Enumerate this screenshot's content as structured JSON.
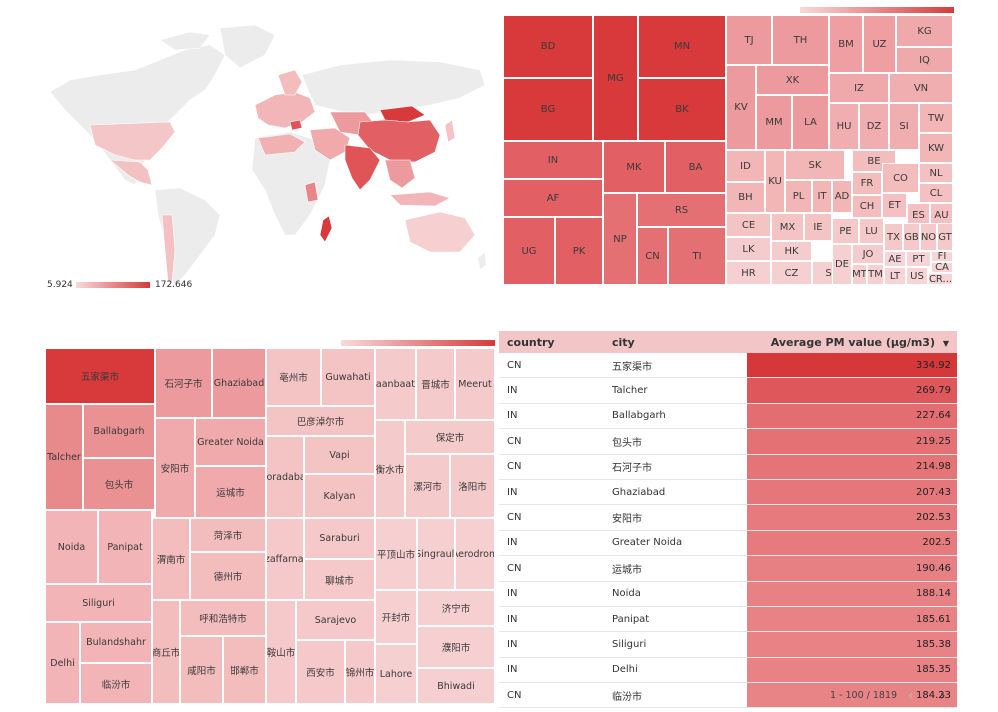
{
  "map": {
    "legend_min": "5.924",
    "legend_max": "172.646"
  },
  "treemap_countries": {
    "cells": [
      {
        "label": "BD",
        "color": "#d8393a"
      },
      {
        "label": "BG",
        "color": "#d8393a"
      },
      {
        "label": "MG",
        "color": "#d8393a"
      },
      {
        "label": "MN",
        "color": "#d8393a"
      },
      {
        "label": "BK",
        "color": "#d8393a"
      },
      {
        "label": "IN",
        "color": "#e26064"
      },
      {
        "label": "AF",
        "color": "#e26064"
      },
      {
        "label": "UG",
        "color": "#e26064"
      },
      {
        "label": "PK",
        "color": "#e26064"
      },
      {
        "label": "MK",
        "color": "#e26064"
      },
      {
        "label": "BA",
        "color": "#e26064"
      },
      {
        "label": "NP",
        "color": "#e57074"
      },
      {
        "label": "RS",
        "color": "#e57074"
      },
      {
        "label": "CN",
        "color": "#e57074"
      },
      {
        "label": "TI",
        "color": "#e57074"
      },
      {
        "label": "TJ",
        "color": "#ec9a9d"
      },
      {
        "label": "TH",
        "color": "#ec9a9d"
      },
      {
        "label": "KV",
        "color": "#ec9a9d"
      },
      {
        "label": "XK",
        "color": "#ec9a9d"
      },
      {
        "label": "MM",
        "color": "#ec9a9d"
      },
      {
        "label": "LA",
        "color": "#ec9a9d"
      },
      {
        "label": "BM",
        "color": "#ef9fa2"
      },
      {
        "label": "UZ",
        "color": "#ef9fa2"
      },
      {
        "label": "KG",
        "color": "#f0a9ab"
      },
      {
        "label": "IQ",
        "color": "#f0a9ab"
      },
      {
        "label": "IZ",
        "color": "#f0a9ab"
      },
      {
        "label": "VN",
        "color": "#f0aeb0"
      },
      {
        "label": "HU",
        "color": "#f0aeb0"
      },
      {
        "label": "DZ",
        "color": "#f0aeb0"
      },
      {
        "label": "SI",
        "color": "#f0aeb0"
      },
      {
        "label": "TW",
        "color": "#f2b6b7"
      },
      {
        "label": "KW",
        "color": "#f2b6b7"
      },
      {
        "label": "ID",
        "color": "#f2b6b7"
      },
      {
        "label": "KU",
        "color": "#f2b6b7"
      },
      {
        "label": "BH",
        "color": "#f2b6b7"
      },
      {
        "label": "SK",
        "color": "#f2b6b7"
      },
      {
        "label": "PL",
        "color": "#f2b6b7"
      },
      {
        "label": "IT",
        "color": "#f2b6b7"
      },
      {
        "label": "AD",
        "color": "#f2b6b7"
      },
      {
        "label": "BE",
        "color": "#f3bcbd"
      },
      {
        "label": "FR",
        "color": "#f3bcbd"
      },
      {
        "label": "CH",
        "color": "#f3bcbd"
      },
      {
        "label": "CO",
        "color": "#f3bcbd"
      },
      {
        "label": "NL",
        "color": "#f4c0c1"
      },
      {
        "label": "CL",
        "color": "#f4c0c1"
      },
      {
        "label": "ET",
        "color": "#f4c0c1"
      },
      {
        "label": "ES",
        "color": "#f4c0c1"
      },
      {
        "label": "AU",
        "color": "#f4c0c1"
      },
      {
        "label": "CE",
        "color": "#f4c4c5"
      },
      {
        "label": "MX",
        "color": "#f4c4c5"
      },
      {
        "label": "IE",
        "color": "#f4c4c5"
      },
      {
        "label": "PE",
        "color": "#f5c8c9"
      },
      {
        "label": "LU",
        "color": "#f5c8c9"
      },
      {
        "label": "TX",
        "color": "#f5c8c9"
      },
      {
        "label": "GB",
        "color": "#f5c8c9"
      },
      {
        "label": "NO",
        "color": "#f5c8c9"
      },
      {
        "label": "GT",
        "color": "#f5c8c9"
      },
      {
        "label": "LK",
        "color": "#f5cccd"
      },
      {
        "label": "HK",
        "color": "#f5cccd"
      },
      {
        "label": "JO",
        "color": "#f5cccd"
      },
      {
        "label": "CZ",
        "color": "#f6d0d1"
      },
      {
        "label": "SA",
        "color": "#f6d0d1"
      },
      {
        "label": "HR",
        "color": "#f6d0d1"
      },
      {
        "label": "DE",
        "color": "#f6d0d1"
      },
      {
        "label": "MT",
        "color": "#f6d0d1"
      },
      {
        "label": "TM",
        "color": "#f6d0d1"
      },
      {
        "label": "AE",
        "color": "#f7d4d5"
      },
      {
        "label": "PT",
        "color": "#f7d4d5"
      },
      {
        "label": "FI",
        "color": "#f7d4d5"
      },
      {
        "label": "CA",
        "color": "#f7d4d5"
      },
      {
        "label": "LT",
        "color": "#f7d4d5"
      },
      {
        "label": "US",
        "color": "#f7d4d5"
      },
      {
        "label": "CR...",
        "color": "#f7d4d5"
      }
    ]
  },
  "treemap_cities": {
    "cells": [
      {
        "label": "五家渠市",
        "color": "#d8393a"
      },
      {
        "label": "石河子市",
        "color": "#ec9a9d"
      },
      {
        "label": "Ghaziabad",
        "color": "#ec9a9d"
      },
      {
        "label": "Talcher",
        "color": "#e8898c"
      },
      {
        "label": "Ballabgarh",
        "color": "#ea9194"
      },
      {
        "label": "包头市",
        "color": "#ea9194"
      },
      {
        "label": "安阳市",
        "color": "#f0aaac"
      },
      {
        "label": "Greater Noida",
        "color": "#f0aaac"
      },
      {
        "label": "运城市",
        "color": "#f0aaac"
      },
      {
        "label": "Noida",
        "color": "#f2b4b6"
      },
      {
        "label": "Panipat",
        "color": "#f2b4b6"
      },
      {
        "label": "Siliguri",
        "color": "#f2b4b6"
      },
      {
        "label": "Delhi",
        "color": "#f2b4b6"
      },
      {
        "label": "Bulandshahr",
        "color": "#f2b4b6"
      },
      {
        "label": "临汾市",
        "color": "#f2b4b6"
      },
      {
        "label": "渭南市",
        "color": "#f3bcbd"
      },
      {
        "label": "菏泽市",
        "color": "#f3bcbd"
      },
      {
        "label": "德州市",
        "color": "#f3bcbd"
      },
      {
        "label": "呼和浩特市",
        "color": "#f3bcbd"
      },
      {
        "label": "商丘市",
        "color": "#f3bcbd"
      },
      {
        "label": "咸阳市",
        "color": "#f3bcbd"
      },
      {
        "label": "邯郸市",
        "color": "#f3bcbd"
      },
      {
        "label": "亳州市",
        "color": "#f4c3c4"
      },
      {
        "label": "Guwahati",
        "color": "#f4c3c4"
      },
      {
        "label": "巴彦淖尔市",
        "color": "#f4c3c4"
      },
      {
        "label": "Moradabad",
        "color": "#f4c3c4"
      },
      {
        "label": "Vapi",
        "color": "#f4c3c4"
      },
      {
        "label": "Kalyan",
        "color": "#f4c3c4"
      },
      {
        "label": "Muzaffarnagar",
        "color": "#f5c8c9"
      },
      {
        "label": "Saraburi",
        "color": "#f5c8c9"
      },
      {
        "label": "聊城市",
        "color": "#f5c8c9"
      },
      {
        "label": "鞍山市",
        "color": "#f5c8c9"
      },
      {
        "label": "Sarajevo",
        "color": "#f5c8c9"
      },
      {
        "label": "西安市",
        "color": "#f5c8c9"
      },
      {
        "label": "锦州市",
        "color": "#f5c8c9"
      },
      {
        "label": "Ulaanbaatar",
        "color": "#f5cacb"
      },
      {
        "label": "晋城市",
        "color": "#f5cacb"
      },
      {
        "label": "Meerut",
        "color": "#f5cacb"
      },
      {
        "label": "保定市",
        "color": "#f5cacb"
      },
      {
        "label": "衡水市",
        "color": "#f5cacb"
      },
      {
        "label": "漯河市",
        "color": "#f5cacb"
      },
      {
        "label": "洛阳市",
        "color": "#f5cacb"
      },
      {
        "label": "平顶山市",
        "color": "#f6cfd0"
      },
      {
        "label": "Singrauli",
        "color": "#f6cfd0"
      },
      {
        "label": "Aerodrom",
        "color": "#f6cfd0"
      },
      {
        "label": "开封市",
        "color": "#f6cfd0"
      },
      {
        "label": "济宁市",
        "color": "#f6cfd0"
      },
      {
        "label": "Lahore",
        "color": "#f6cfd0"
      },
      {
        "label": "濮阳市",
        "color": "#f6cfd0"
      },
      {
        "label": "Bhiwadi",
        "color": "#f6cfd0"
      }
    ]
  },
  "table": {
    "headers": {
      "country": "country",
      "city": "city",
      "value": "Average PM value (µg/m3)"
    },
    "sort_icon": "caret-down",
    "rows": [
      {
        "country": "CN",
        "city": "五家渠市",
        "value": "334.92",
        "pm": 334.92
      },
      {
        "country": "IN",
        "city": "Talcher",
        "value": "269.79",
        "pm": 269.79
      },
      {
        "country": "IN",
        "city": "Ballabgarh",
        "value": "227.64",
        "pm": 227.64
      },
      {
        "country": "CN",
        "city": "包头市",
        "value": "219.25",
        "pm": 219.25
      },
      {
        "country": "CN",
        "city": "石河子市",
        "value": "214.98",
        "pm": 214.98
      },
      {
        "country": "IN",
        "city": "Ghaziabad",
        "value": "207.43",
        "pm": 207.43
      },
      {
        "country": "CN",
        "city": "安阳市",
        "value": "202.53",
        "pm": 202.53
      },
      {
        "country": "IN",
        "city": "Greater Noida",
        "value": "202.5",
        "pm": 202.5
      },
      {
        "country": "CN",
        "city": "运城市",
        "value": "190.46",
        "pm": 190.46
      },
      {
        "country": "IN",
        "city": "Noida",
        "value": "188.14",
        "pm": 188.14
      },
      {
        "country": "IN",
        "city": "Panipat",
        "value": "185.61",
        "pm": 185.61
      },
      {
        "country": "IN",
        "city": "Siliguri",
        "value": "185.38",
        "pm": 185.38
      },
      {
        "country": "IN",
        "city": "Delhi",
        "value": "185.35",
        "pm": 185.35
      },
      {
        "country": "CN",
        "city": "临汾市",
        "value": "184.23",
        "pm": 184.23
      }
    ],
    "pagination": "1 - 100 / 1819"
  }
}
